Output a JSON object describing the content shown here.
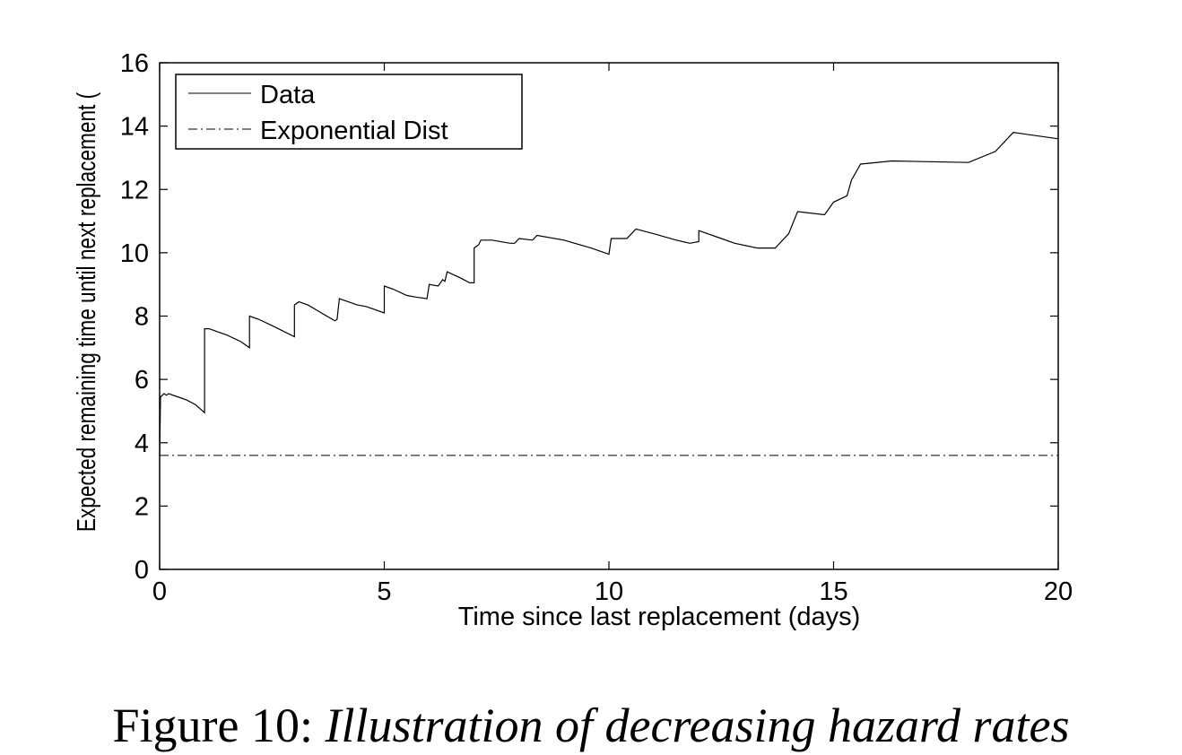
{
  "chart_data": {
    "type": "line",
    "xlabel": "Time since last replacement (days)",
    "ylabel": "Expected remaining time until next replacement (",
    "xlim": [
      0,
      20
    ],
    "ylim": [
      0,
      16
    ],
    "x_ticks": [
      0,
      5,
      10,
      15,
      20
    ],
    "y_ticks": [
      0,
      2,
      4,
      6,
      8,
      10,
      12,
      14,
      16
    ],
    "grid": false,
    "legend_position": "top-left",
    "series": [
      {
        "name": "Data",
        "style": "solid",
        "points": [
          [
            0.0,
            3.6
          ],
          [
            0.02,
            5.45
          ],
          [
            0.1,
            5.55
          ],
          [
            0.15,
            5.5
          ],
          [
            0.2,
            5.55
          ],
          [
            0.4,
            5.45
          ],
          [
            0.6,
            5.35
          ],
          [
            0.8,
            5.2
          ],
          [
            1.0,
            4.95
          ],
          [
            1.0,
            7.6
          ],
          [
            1.1,
            7.6
          ],
          [
            1.3,
            7.5
          ],
          [
            1.5,
            7.4
          ],
          [
            1.8,
            7.2
          ],
          [
            2.0,
            7.0
          ],
          [
            2.0,
            8.0
          ],
          [
            2.2,
            7.9
          ],
          [
            2.5,
            7.7
          ],
          [
            3.0,
            7.35
          ],
          [
            3.0,
            8.35
          ],
          [
            3.1,
            8.45
          ],
          [
            3.3,
            8.35
          ],
          [
            3.6,
            8.1
          ],
          [
            3.9,
            7.85
          ],
          [
            3.95,
            7.9
          ],
          [
            4.0,
            8.55
          ],
          [
            4.2,
            8.45
          ],
          [
            4.4,
            8.35
          ],
          [
            4.6,
            8.3
          ],
          [
            4.8,
            8.2
          ],
          [
            5.0,
            8.1
          ],
          [
            5.0,
            8.95
          ],
          [
            5.2,
            8.85
          ],
          [
            5.5,
            8.65
          ],
          [
            5.7,
            8.6
          ],
          [
            5.95,
            8.55
          ],
          [
            6.0,
            9.0
          ],
          [
            6.2,
            8.95
          ],
          [
            6.3,
            9.15
          ],
          [
            6.35,
            9.1
          ],
          [
            6.4,
            9.4
          ],
          [
            6.7,
            9.2
          ],
          [
            6.9,
            9.05
          ],
          [
            7.0,
            9.05
          ],
          [
            7.0,
            10.15
          ],
          [
            7.1,
            10.25
          ],
          [
            7.15,
            10.4
          ],
          [
            7.4,
            10.4
          ],
          [
            7.8,
            10.3
          ],
          [
            7.9,
            10.3
          ],
          [
            8.0,
            10.45
          ],
          [
            8.3,
            10.4
          ],
          [
            8.4,
            10.55
          ],
          [
            9.0,
            10.4
          ],
          [
            9.6,
            10.15
          ],
          [
            10.0,
            9.95
          ],
          [
            10.05,
            10.45
          ],
          [
            10.3,
            10.45
          ],
          [
            10.4,
            10.45
          ],
          [
            10.6,
            10.75
          ],
          [
            11.0,
            10.6
          ],
          [
            11.5,
            10.4
          ],
          [
            11.8,
            10.3
          ],
          [
            12.0,
            10.35
          ],
          [
            12.0,
            10.7
          ],
          [
            12.5,
            10.45
          ],
          [
            12.8,
            10.3
          ],
          [
            13.3,
            10.15
          ],
          [
            13.7,
            10.15
          ],
          [
            14.0,
            10.6
          ],
          [
            14.2,
            11.3
          ],
          [
            14.8,
            11.2
          ],
          [
            15.0,
            11.6
          ],
          [
            15.3,
            11.8
          ],
          [
            15.4,
            12.3
          ],
          [
            15.6,
            12.8
          ],
          [
            16.3,
            12.9
          ],
          [
            18.0,
            12.85
          ],
          [
            18.6,
            13.2
          ],
          [
            19.0,
            13.8
          ],
          [
            20.0,
            13.6
          ]
        ]
      },
      {
        "name": "Exponential Dist",
        "style": "dash-dot",
        "points": [
          [
            0,
            3.6
          ],
          [
            20,
            3.6
          ]
        ]
      }
    ],
    "caption_prefix": "Figure 10:",
    "caption_text": "Illustration of decreasing hazard rates"
  }
}
